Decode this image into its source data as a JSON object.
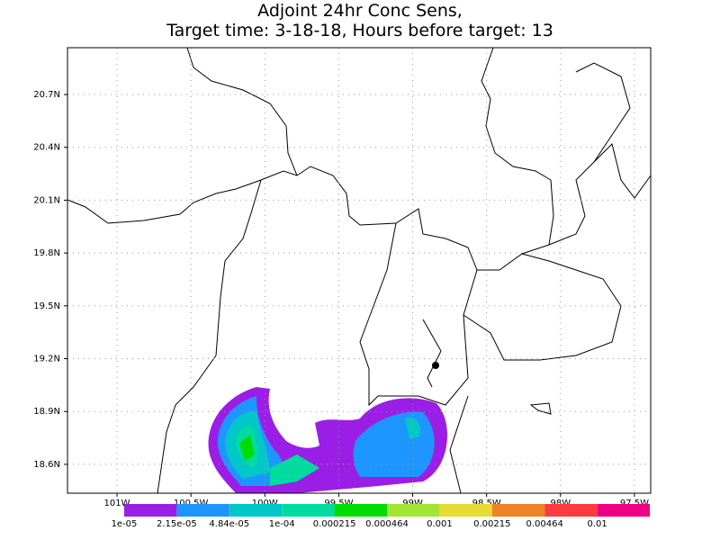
{
  "header": {
    "title_lines": [
      "Adjoint 24hr Conc Sens,",
      "Target time: 3-18-18, Hours before target: 13"
    ]
  },
  "map": {
    "xlim": [
      -101.335,
      -97.39
    ],
    "ylim": [
      18.436,
      20.966
    ],
    "xticks": [
      {
        "value": -101,
        "label": "101W"
      },
      {
        "value": -100.5,
        "label": "100.5W"
      },
      {
        "value": -100,
        "label": "100W"
      },
      {
        "value": -99.5,
        "label": "99.5W"
      },
      {
        "value": -99,
        "label": "99W"
      },
      {
        "value": -98.5,
        "label": "98.5W"
      },
      {
        "value": -98,
        "label": "98W"
      },
      {
        "value": -97.5,
        "label": "97.5W"
      }
    ],
    "yticks": [
      {
        "value": 18.6,
        "label": "18.6N"
      },
      {
        "value": 18.9,
        "label": "18.9N"
      },
      {
        "value": 19.2,
        "label": "19.2N"
      },
      {
        "value": 19.5,
        "label": "19.5N"
      },
      {
        "value": 19.8,
        "label": "19.8N"
      },
      {
        "value": 20.1,
        "label": "20.1N"
      },
      {
        "value": 20.4,
        "label": "20.4N"
      },
      {
        "value": 20.7,
        "label": "20.7N"
      }
    ],
    "grid": true
  },
  "colorbar": {
    "levels": [
      {
        "value": 1e-05,
        "label": "1e-05"
      },
      {
        "value": 2.15e-05,
        "label": "2.15e-05"
      },
      {
        "value": 4.84e-05,
        "label": "4.84e-05"
      },
      {
        "value": 0.0001,
        "label": "1e-04"
      },
      0.000215,
      0.000464,
      0.001,
      0.00215,
      0.00464,
      0.01
    ],
    "colors": [
      "#9b1ee6",
      "#1e96ff",
      "#00c8c8",
      "#00dca0",
      "#00dc00",
      "#a0e632",
      "#e6dc32",
      "#f08228",
      "#fa3c3c",
      "#f00082"
    ]
  }
}
